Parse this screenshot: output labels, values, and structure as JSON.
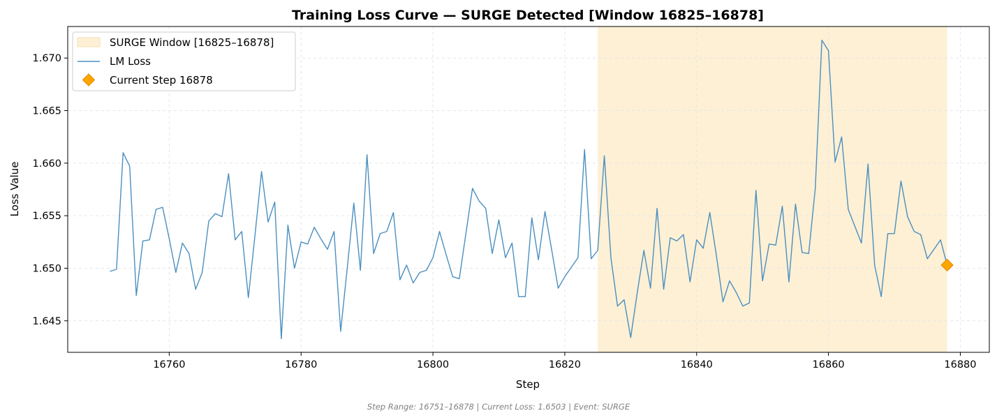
{
  "chart_data": {
    "type": "line",
    "title": "Training Loss Curve — SURGE Detected [Window 16825–16878]",
    "xlabel": "Step",
    "ylabel": "Loss Value",
    "xlim": [
      16744.6,
      16884.4
    ],
    "ylim": [
      1.642,
      1.673
    ],
    "xticks": [
      16760,
      16780,
      16800,
      16820,
      16840,
      16860,
      16880
    ],
    "yticks": [
      1.645,
      1.65,
      1.655,
      1.66,
      1.665,
      1.67
    ],
    "grid": true,
    "legend_position": "top-left",
    "legend": {
      "window": "SURGE Window [16825–16878]",
      "loss": "LM Loss",
      "current": "Current Step 16878"
    },
    "surge_window": {
      "start": 16825,
      "end": 16878,
      "color": "#fdf0d5"
    },
    "series": [
      {
        "name": "LM Loss",
        "color": "#4a8fc0",
        "x_start": 16751,
        "x_step": 1,
        "values": [
          1.6497,
          1.6499,
          1.661,
          1.6597,
          1.6474,
          1.6526,
          1.6527,
          1.6556,
          1.6558,
          1.6528,
          1.6496,
          1.6524,
          1.6514,
          1.648,
          1.6496,
          1.6545,
          1.6552,
          1.6549,
          1.659,
          1.6527,
          1.6535,
          1.6472,
          1.6531,
          1.6592,
          1.6544,
          1.6563,
          1.6433,
          1.6541,
          1.65,
          1.6525,
          1.6523,
          1.6539,
          1.6528,
          1.6518,
          1.6535,
          1.644,
          1.65,
          1.6562,
          1.6498,
          1.6608,
          1.6514,
          1.6533,
          1.6535,
          1.6553,
          1.6489,
          1.6503,
          1.6486,
          1.6496,
          1.6498,
          1.651,
          1.6535,
          1.6513,
          1.6492,
          1.649,
          1.6533,
          1.6576,
          1.6564,
          1.6557,
          1.6514,
          1.6546,
          1.651,
          1.6524,
          1.6473,
          1.6473,
          1.6548,
          1.6508,
          1.6554,
          1.6518,
          1.6481,
          1.6492,
          1.6501,
          1.651,
          1.6613,
          1.6509,
          1.6517,
          1.6607,
          1.651,
          1.6464,
          1.647,
          1.6434,
          1.6477,
          1.6517,
          1.6481,
          1.6557,
          1.648,
          1.6529,
          1.6526,
          1.6532,
          1.6487,
          1.6527,
          1.6519,
          1.6553,
          1.6512,
          1.6468,
          1.6488,
          1.6477,
          1.6464,
          1.6467,
          1.6574,
          1.6488,
          1.6523,
          1.6522,
          1.6559,
          1.6487,
          1.6561,
          1.6515,
          1.6514,
          1.6576,
          1.6717,
          1.6707,
          1.6601,
          1.6625,
          1.6556,
          1.654,
          1.6524,
          1.6599,
          1.6503,
          1.6473,
          1.6533,
          1.6533,
          1.6583,
          1.6549,
          1.6535,
          1.6532,
          1.6509,
          1.6518,
          1.6527,
          1.6503
        ]
      }
    ],
    "current_point": {
      "x": 16878,
      "y": 1.6503,
      "color": "#ffa500"
    },
    "footer": "Step Range: 16751–16878 | Current Loss: 1.6503 | Event: SURGE"
  }
}
